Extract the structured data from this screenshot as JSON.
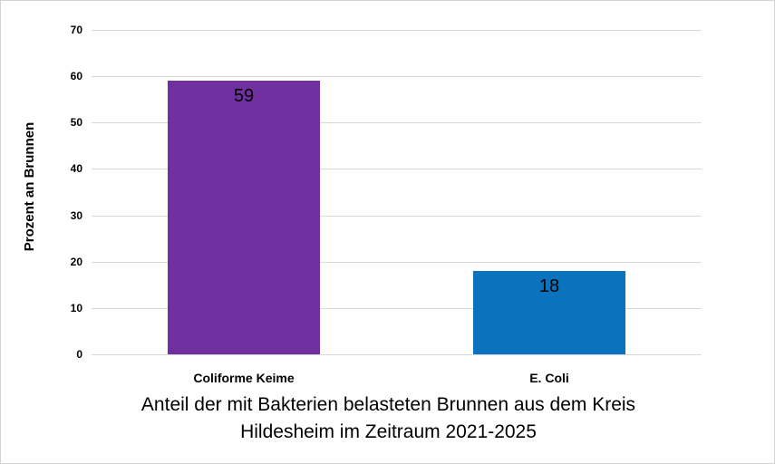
{
  "figure": {
    "background_color": "#ffffff",
    "border_color": "#d4d4d4"
  },
  "chart_data": {
    "type": "bar",
    "title": "Anteil der mit Bakterien belasteten Brunnen aus dem Kreis Hildesheim im Zeitraum 2021-2025",
    "title_lines": [
      "Anteil der mit Bakterien belasteten Brunnen aus dem Kreis",
      "Hildesheim im Zeitraum 2021-2025"
    ],
    "xlabel": "",
    "ylabel": "Prozent an Brunnen",
    "categories": [
      "Coliforme Keime",
      "E. Coli"
    ],
    "values": [
      59,
      18
    ],
    "data_labels": [
      "59",
      "18"
    ],
    "bar_colors": [
      "#7030a0",
      "#0b72bd"
    ],
    "ylim": [
      0,
      70
    ],
    "yticks": [
      0,
      10,
      20,
      30,
      40,
      50,
      60,
      70
    ],
    "grid": true,
    "gridline_color": "#d9d9d9",
    "legend_position": "none"
  }
}
